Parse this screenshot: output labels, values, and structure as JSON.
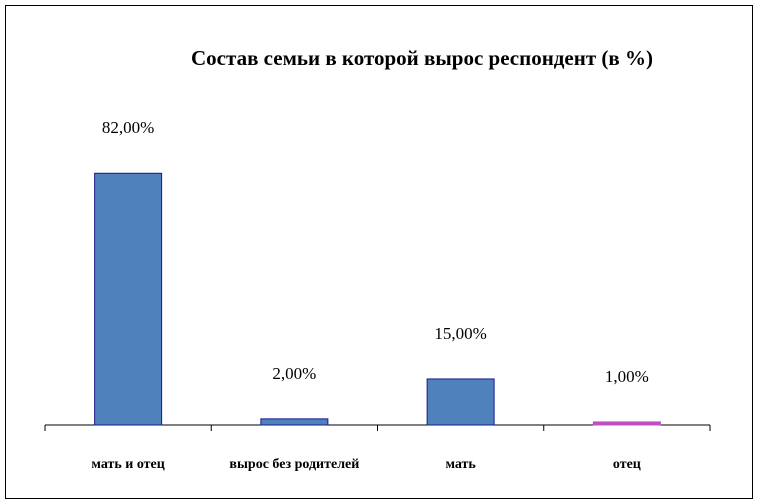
{
  "chart_data": {
    "type": "bar",
    "title": "Состав семьи в которой вырос респондент (в %)",
    "categories": [
      "мать и отец",
      "вырос без родителей",
      "мать",
      "отец"
    ],
    "values": [
      82,
      2,
      15,
      1
    ],
    "value_labels": [
      "82,00%",
      "2,00%",
      "15,00%",
      "1,00%"
    ],
    "colors": [
      "#4f81bd",
      "#4f81bd",
      "#4f81bd",
      "#c04fc0"
    ],
    "color": "#4f81bd"
  }
}
